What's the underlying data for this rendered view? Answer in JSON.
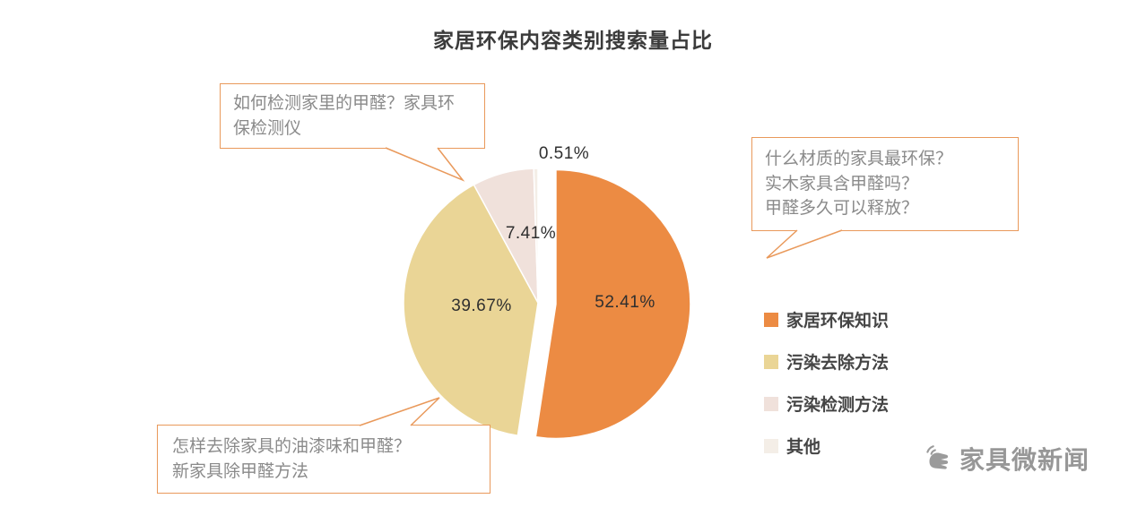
{
  "title": "家居环保内容类别搜索量占比",
  "chart_data": {
    "type": "pie",
    "title": "家居环保内容类别搜索量占比",
    "unit": "percent",
    "start_angle_deg": 0,
    "direction": "clockwise",
    "legend_position": "right",
    "slices": [
      {
        "label": "家居环保知识",
        "value": 52.41,
        "display": "52.41%",
        "color": "#EC8B43",
        "exploded": true
      },
      {
        "label": "污染去除方法",
        "value": 39.67,
        "display": "39.67%",
        "color": "#EAD596",
        "exploded": false
      },
      {
        "label": "污染检测方法",
        "value": 7.41,
        "display": "7.41%",
        "color": "#F0E1DB",
        "exploded": false
      },
      {
        "label": "其他",
        "value": 0.51,
        "display": "0.51%",
        "color": "#F4EEE7",
        "exploded": false
      }
    ]
  },
  "callouts": {
    "detect": {
      "lines": [
        "如何检测家里的甲醛？家具环",
        "保检测仪"
      ]
    },
    "material": {
      "lines": [
        "什么材质的家具最环保？",
        "实木家具含甲醛吗？",
        "甲醛多久可以释放？"
      ]
    },
    "remove": {
      "lines": [
        "怎样去除家具的油漆味和甲醛？",
        "新家具除甲醛方法"
      ]
    }
  },
  "colors": {
    "accent": "#E9995B",
    "watermark": "#979797"
  },
  "watermark": {
    "text": "家具微新闻"
  }
}
